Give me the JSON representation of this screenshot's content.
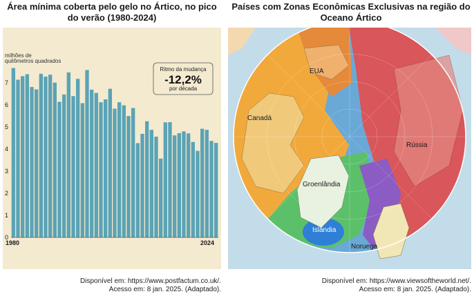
{
  "chart_panel": {
    "title_line1": "Área mínima coberta pelo gelo no Ártico, no pico",
    "title_line2": "do verão (1980-2024)",
    "unit_line1": "milhões de",
    "unit_line2": "quilômetros quadrados",
    "rate_box": {
      "label": "Ritmo da mudança",
      "value": "-12,2%",
      "unit": "por década"
    },
    "x_start_label": "1980",
    "x_end_label": "2024",
    "source_line1": "Disponível em: https://www.postfactum.co.uk/.",
    "source_line2": "Acesso em: 8 jan. 2025. (Adaptado)."
  },
  "chart_data": {
    "type": "bar",
    "x": [
      1980,
      1981,
      1982,
      1983,
      1984,
      1985,
      1986,
      1987,
      1988,
      1989,
      1990,
      1991,
      1992,
      1993,
      1994,
      1995,
      1996,
      1997,
      1998,
      1999,
      2000,
      2001,
      2002,
      2003,
      2004,
      2005,
      2006,
      2007,
      2008,
      2009,
      2010,
      2011,
      2012,
      2013,
      2014,
      2015,
      2016,
      2017,
      2018,
      2019,
      2020,
      2021,
      2022,
      2023,
      2024
    ],
    "values": [
      7.67,
      7.14,
      7.3,
      7.39,
      6.81,
      6.7,
      7.41,
      7.28,
      7.37,
      7.01,
      6.14,
      6.47,
      7.47,
      6.4,
      7.18,
      6.08,
      7.58,
      6.69,
      6.54,
      6.12,
      6.25,
      6.73,
      5.83,
      6.12,
      5.98,
      5.5,
      5.86,
      4.27,
      4.69,
      5.26,
      4.87,
      4.56,
      3.57,
      5.21,
      5.22,
      4.62,
      4.72,
      4.8,
      4.71,
      4.32,
      3.92,
      4.92,
      4.87,
      4.37,
      4.28
    ],
    "ylim": [
      0,
      8
    ],
    "yticks": [
      0,
      1,
      2,
      3,
      4,
      5,
      6,
      7
    ],
    "bar_color": "#5ba3b5"
  },
  "map_panel": {
    "title_line1": "Países com Zonas Econômicas Exclusivas na região do",
    "title_line2": "Oceano Ártico",
    "labels": {
      "eua": "EUA",
      "canada": "Canadá",
      "russia": "Rússia",
      "groenlandia": "Groenlândia",
      "islandia": "Islândia",
      "noruega": "Noruega"
    },
    "zone_colors": {
      "canada": "#f2a93b",
      "eua": "#e58a3a",
      "russia": "#d9565a",
      "groenlandia": "#5cc06a",
      "islandia": "#2f7fd6",
      "noruega": "#8a5cc4",
      "international": "#6aa8d6"
    },
    "source_line1": "Disponível em: https://www.viewsoftheworld.net/.",
    "source_line2": "Acesso em: 8 jan. 2025. (Adaptado)."
  }
}
